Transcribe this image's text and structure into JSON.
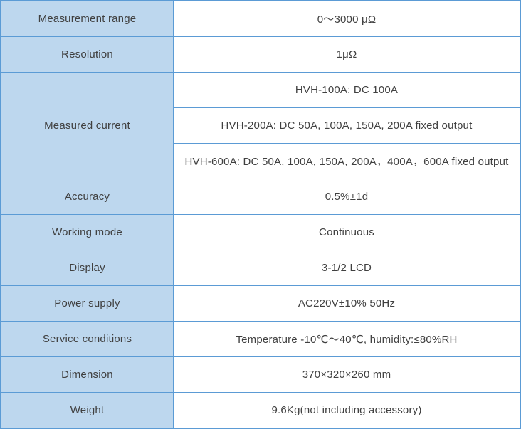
{
  "theme": {
    "border-color": "#5b9bd5",
    "label-bg": "#bdd7ee",
    "value-bg": "#ffffff",
    "text-color": "#404040"
  },
  "table": {
    "rows": [
      {
        "label": "Measurement range",
        "values": [
          "0～3000 μΩ"
        ]
      },
      {
        "label": "Resolution",
        "values": [
          "1μΩ"
        ]
      },
      {
        "label": "Measured current",
        "values": [
          "HVH-100A: DC 100A",
          "HVH-200A: DC 50A, 100A, 150A, 200A fixed output",
          "HVH-600A: DC 50A, 100A, 150A, 200A，400A，600A fixed output"
        ]
      },
      {
        "label": "Accuracy",
        "values": [
          "0.5%±1d"
        ]
      },
      {
        "label": "Working mode",
        "values": [
          "Continuous"
        ]
      },
      {
        "label": "Display",
        "values": [
          "3-1/2 LCD"
        ]
      },
      {
        "label": "Power supply",
        "values": [
          "AC220V±10% 50Hz"
        ]
      },
      {
        "label": "Service conditions",
        "values": [
          "Temperature -10℃～40℃, humidity:≤80%RH"
        ]
      },
      {
        "label": "Dimension",
        "values": [
          "370×320×260 mm"
        ]
      },
      {
        "label": "Weight",
        "values": [
          "9.6Kg(not including accessory)"
        ]
      }
    ]
  }
}
